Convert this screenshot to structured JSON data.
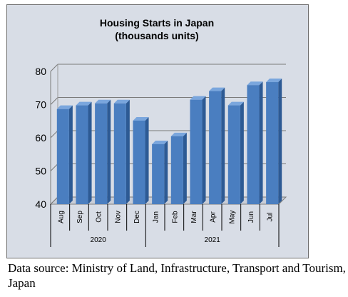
{
  "chart_data": {
    "type": "bar",
    "title": "Housing Starts in Japan",
    "subtitle": "(thousands units)",
    "xlabel": "",
    "ylabel": "",
    "ylim": [
      40,
      80
    ],
    "yticks": [
      40,
      50,
      60,
      70,
      80
    ],
    "grid": true,
    "categories": [
      "Aug",
      "Sep",
      "Oct",
      "Nov",
      "Dec",
      "Jan",
      "Feb",
      "Mar",
      "Apr",
      "May",
      "Jun",
      "Jul"
    ],
    "groups": [
      {
        "label": "2020",
        "categories": [
          "Aug",
          "Sep",
          "Oct",
          "Nov",
          "Dec"
        ]
      },
      {
        "label": "2021",
        "categories": [
          "Jan",
          "Feb",
          "Mar",
          "Apr",
          "May",
          "Jun",
          "Jul"
        ]
      }
    ],
    "values": [
      69.1,
      70.2,
      70.8,
      70.8,
      65.6,
      58.5,
      60.9,
      71.9,
      74.5,
      70.2,
      76.3,
      77.2
    ],
    "bar_color": "#4a7ec0"
  },
  "source_note": "Data source: Ministry of Land, Infrastructure, Transport and Tourism, Japan"
}
